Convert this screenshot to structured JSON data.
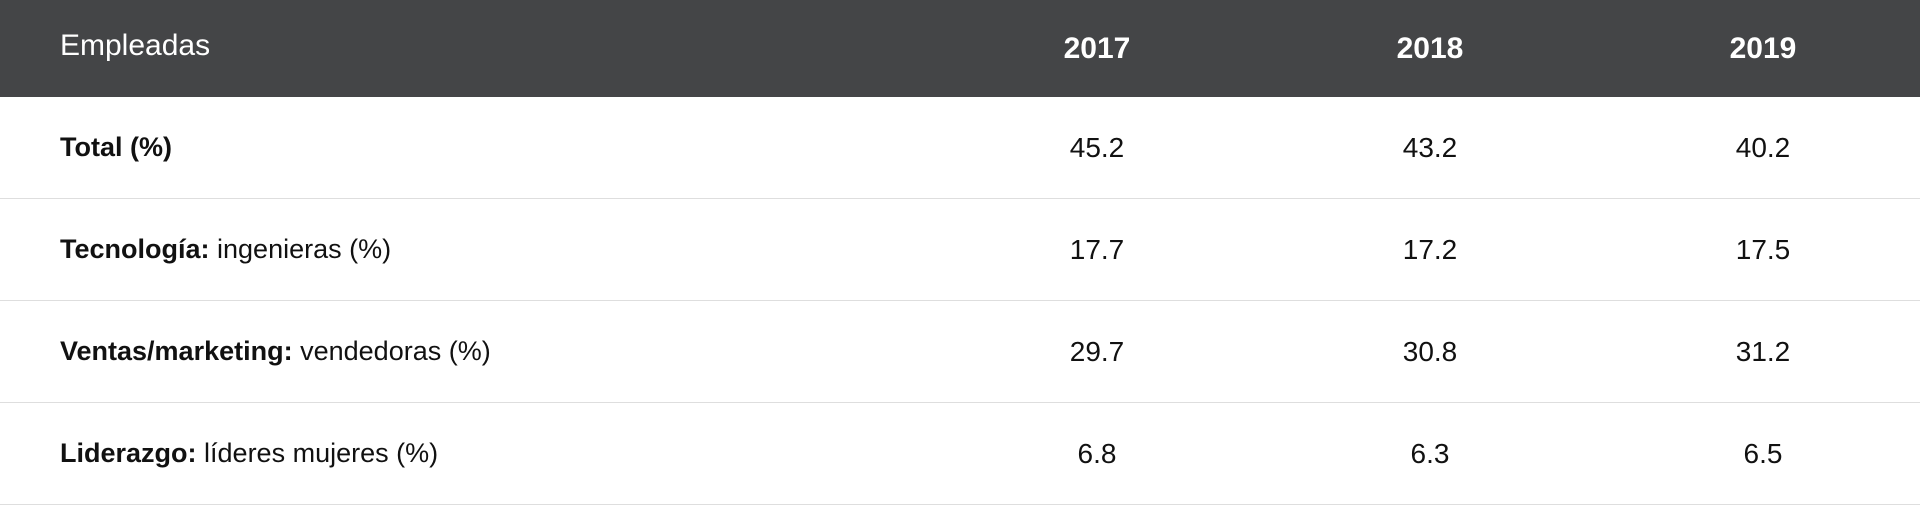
{
  "table": {
    "header": {
      "label": "Empleadas",
      "years": [
        "2017",
        "2018",
        "2019"
      ]
    },
    "rows": [
      {
        "label_bold": "Total (%)",
        "label_rest": "",
        "values": [
          "45.2",
          "43.2",
          "40.2"
        ]
      },
      {
        "label_bold": "Tecnología:",
        "label_rest": "ingenieras (%)",
        "values": [
          "17.7",
          "17.2",
          "17.5"
        ]
      },
      {
        "label_bold": "Ventas/marketing:",
        "label_rest": "vendedoras (%)",
        "values": [
          "29.7",
          "30.8",
          "31.2"
        ]
      },
      {
        "label_bold": "Liderazgo:",
        "label_rest": "líderes mujeres (%)",
        "values": [
          "6.8",
          "6.3",
          "6.5"
        ]
      }
    ]
  }
}
